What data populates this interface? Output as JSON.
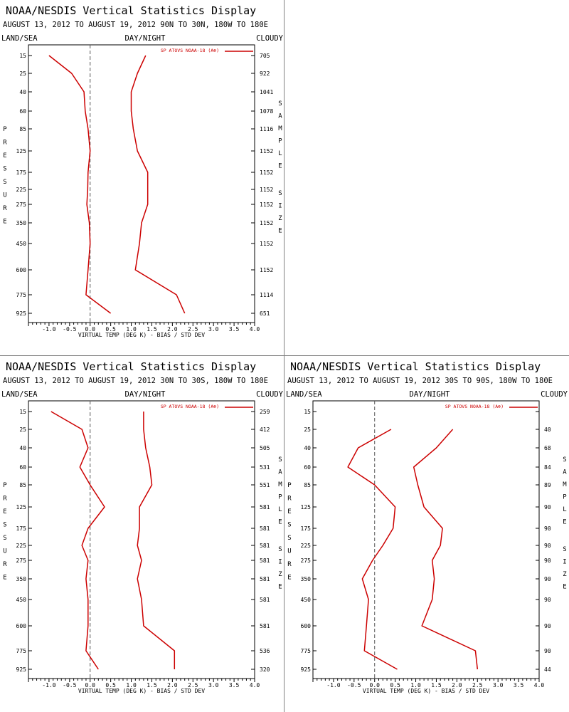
{
  "chart_data": [
    {
      "type": "line",
      "title": "NOAA/NESDIS Vertical Statistics Display",
      "subtitle": "AUGUST 13, 2012 TO AUGUST 19, 2012  90N TO 30N, 180W TO 180E",
      "header_labels": [
        "LAND/SEA",
        "DAY/NIGHT",
        "CLOUDY"
      ],
      "xlabel": "VIRTUAL TEMP (DEG K) - BIAS / STD DEV",
      "ylabel": "PRESSURE",
      "y2label": "SAMPLE SIZE",
      "xlim": [
        -1.5,
        4.0
      ],
      "x_ticks": [
        "-1.0",
        "-0.5",
        "0.0",
        "0.5",
        "1.0",
        "1.5",
        "2.0",
        "2.5",
        "3.0",
        "3.5",
        "4.0"
      ],
      "pressure_levels": [
        "15",
        "25",
        "40",
        "60",
        "85",
        "125",
        "175",
        "225",
        "275",
        "350",
        "450",
        "600",
        "775",
        "925"
      ],
      "sample_size": [
        "705",
        "922",
        "1041",
        "1078",
        "1116",
        "1152",
        "1152",
        "1152",
        "1152",
        "1152",
        "1152",
        "1152",
        "1114",
        "651"
      ],
      "legend": "SP ATOVS NOAA-18 (A⊕)",
      "series": [
        {
          "name": "bias",
          "values": [
            -1.0,
            -0.45,
            -0.15,
            -0.12,
            -0.05,
            0.0,
            -0.05,
            -0.06,
            -0.08,
            -0.02,
            0.0,
            -0.05,
            -0.1,
            0.5
          ]
        },
        {
          "name": "std dev",
          "values": [
            1.35,
            1.15,
            1.0,
            1.0,
            1.05,
            1.15,
            1.4,
            1.4,
            1.4,
            1.25,
            1.2,
            1.1,
            2.1,
            2.3
          ]
        }
      ]
    },
    {
      "type": "line",
      "title": "NOAA/NESDIS Vertical Statistics Display",
      "subtitle": "AUGUST 13, 2012 TO AUGUST 19, 2012  30N TO 30S, 180W TO 180E",
      "header_labels": [
        "LAND/SEA",
        "DAY/NIGHT",
        "CLOUDY"
      ],
      "xlabel": "VIRTUAL TEMP (DEG K) - BIAS / STD DEV",
      "ylabel": "PRESSURE",
      "y2label": "SAMPLE SIZE",
      "xlim": [
        -1.5,
        4.0
      ],
      "x_ticks": [
        "-1.0",
        "-0.5",
        "0.0",
        "0.5",
        "1.0",
        "1.5",
        "2.0",
        "2.5",
        "3.0",
        "3.5",
        "4.0"
      ],
      "pressure_levels": [
        "15",
        "25",
        "40",
        "60",
        "85",
        "125",
        "175",
        "225",
        "275",
        "350",
        "450",
        "600",
        "775",
        "925"
      ],
      "sample_size": [
        "259",
        "412",
        "505",
        "531",
        "551",
        "581",
        "581",
        "581",
        "581",
        "581",
        "581",
        "581",
        "536",
        "320"
      ],
      "legend": "SP ATOVS NOAA-18 (A⊕)",
      "series": [
        {
          "name": "bias",
          "values": [
            -0.95,
            -0.2,
            -0.05,
            -0.25,
            0.0,
            0.35,
            -0.05,
            -0.2,
            -0.05,
            -0.1,
            -0.05,
            -0.05,
            -0.1,
            0.2
          ]
        },
        {
          "name": "std dev",
          "values": [
            1.3,
            1.3,
            1.35,
            1.45,
            1.5,
            1.2,
            1.2,
            1.15,
            1.25,
            1.15,
            1.25,
            1.3,
            2.05,
            2.05
          ]
        }
      ]
    },
    {
      "type": "line",
      "title": "NOAA/NESDIS Vertical Statistics Display",
      "subtitle": "AUGUST 13, 2012 TO AUGUST 19, 2012  30S TO 90S, 180W TO 180E",
      "header_labels": [
        "LAND/SEA",
        "DAY/NIGHT",
        "CLOUDY"
      ],
      "xlabel": "VIRTUAL TEMP (DEG K) - BIAS / STD DEV",
      "ylabel": "PRESSURE",
      "y2label": "SAMPLE SIZE",
      "xlim": [
        -1.5,
        4.0
      ],
      "x_ticks": [
        "-1.0",
        "-0.5",
        "0.0",
        "0.5",
        "1.0",
        "1.5",
        "2.0",
        "2.5",
        "3.0",
        "3.5",
        "4.0"
      ],
      "pressure_levels": [
        "15",
        "25",
        "40",
        "60",
        "85",
        "125",
        "175",
        "225",
        "275",
        "350",
        "450",
        "600",
        "775",
        "925"
      ],
      "sample_size": [
        "",
        "40",
        "68",
        "84",
        "89",
        "90",
        "90",
        "90",
        "90",
        "90",
        "90",
        "90",
        "90",
        "44"
      ],
      "legend": "SP ATOVS NOAA-18 (A⊕)",
      "series": [
        {
          "name": "bias",
          "values": [
            null,
            0.4,
            -0.4,
            -0.65,
            0.0,
            0.5,
            0.45,
            0.2,
            -0.05,
            -0.3,
            -0.15,
            -0.2,
            -0.25,
            0.55
          ]
        },
        {
          "name": "std dev",
          "values": [
            null,
            1.9,
            1.5,
            0.95,
            1.05,
            1.2,
            1.65,
            1.6,
            1.4,
            1.45,
            1.4,
            1.15,
            2.45,
            2.5
          ]
        }
      ]
    }
  ]
}
